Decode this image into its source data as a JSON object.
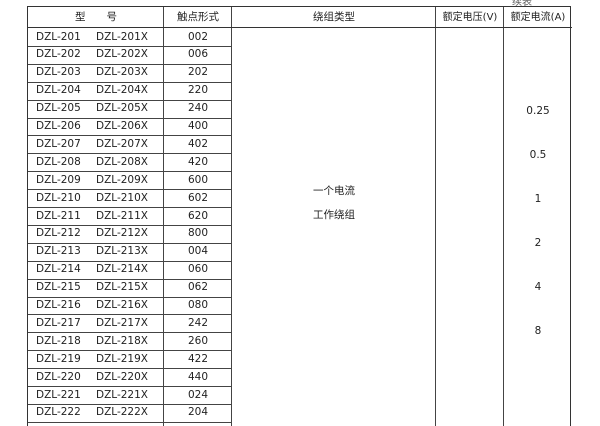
{
  "continued_label": "续表",
  "headers": {
    "model": "型　　号",
    "contact": "触点形式",
    "winding": "绕组类型",
    "voltage": "额定电压(V)",
    "current": "额定电流(A)"
  },
  "rows": [
    [
      "DZL-201",
      "DZL-201X",
      "002"
    ],
    [
      "DZL-202",
      "DZL-202X",
      "006"
    ],
    [
      "DZL-203",
      "DZL-203X",
      "202"
    ],
    [
      "DZL-204",
      "DZL-204X",
      "220"
    ],
    [
      "DZL-205",
      "DZL-205X",
      "240"
    ],
    [
      "DZL-206",
      "DZL-206X",
      "400"
    ],
    [
      "DZL-207",
      "DZL-207X",
      "402"
    ],
    [
      "DZL-208",
      "DZL-208X",
      "420"
    ],
    [
      "DZL-209",
      "DZL-209X",
      "600"
    ],
    [
      "DZL-210",
      "DZL-210X",
      "602"
    ],
    [
      "DZL-211",
      "DZL-211X",
      "620"
    ],
    [
      "DZL-212",
      "DZL-212X",
      "800"
    ],
    [
      "DZL-213",
      "DZL-213X",
      "004"
    ],
    [
      "DZL-214",
      "DZL-214X",
      "060"
    ],
    [
      "DZL-215",
      "DZL-215X",
      "062"
    ],
    [
      "DZL-216",
      "DZL-216X",
      "080"
    ],
    [
      "DZL-217",
      "DZL-217X",
      "242"
    ],
    [
      "DZL-218",
      "DZL-218X",
      "260"
    ],
    [
      "DZL-219",
      "DZL-219X",
      "422"
    ],
    [
      "DZL-220",
      "DZL-220X",
      "440"
    ],
    [
      "DZL-221",
      "DZL-221X",
      "024"
    ],
    [
      "DZL-222",
      "DZL-222X",
      "204"
    ]
  ],
  "winding": {
    "line1": "一个电流",
    "line2": "工作绕组"
  },
  "currents": [
    "0.25",
    "0.5",
    "1",
    "2",
    "4",
    "8"
  ]
}
